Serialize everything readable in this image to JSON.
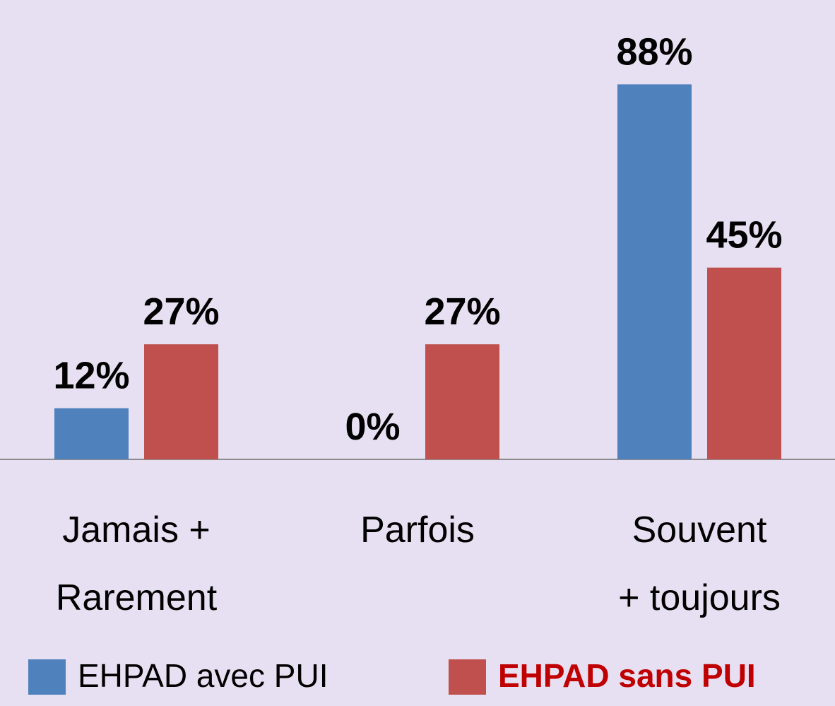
{
  "chart_data": {
    "type": "bar",
    "categories": [
      "Jamais +\nRarement",
      "Parfois",
      "Souvent\n+ toujours"
    ],
    "series": [
      {
        "name": "EHPAD avec PUI",
        "color": "#4f81bd",
        "values": [
          12,
          0,
          88
        ],
        "value_labels": [
          "12%",
          "0%",
          "88%"
        ]
      },
      {
        "name": "EHPAD sans PUI",
        "color": "#c0504d",
        "values": [
          27,
          27,
          45
        ],
        "value_labels": [
          "27%",
          "27%",
          "45%"
        ]
      }
    ],
    "ylim": [
      0,
      100
    ]
  }
}
